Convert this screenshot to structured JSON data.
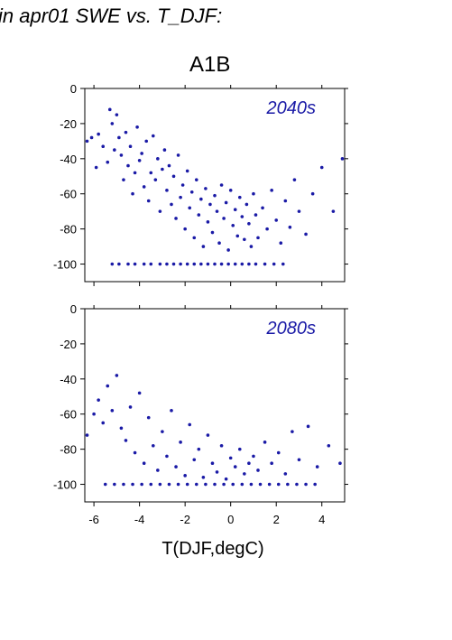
{
  "header": {
    "title": "in apr01 SWE vs. T_DJF:",
    "scenario": "A1B"
  },
  "colors": {
    "points": "#1a1aa6",
    "label": "#1a1aa6"
  },
  "chart_data": [
    {
      "type": "scatter",
      "panel_label": "2040s",
      "xlabel": "T(DJF,degC)",
      "ylabel": "",
      "xlim": [
        -6.4,
        5.0
      ],
      "ylim": [
        -110,
        0
      ],
      "yticks": [
        0,
        -20,
        -40,
        -60,
        -80,
        -100
      ],
      "xticks": [
        -6,
        -4,
        -2,
        0,
        2,
        4
      ],
      "grid": false,
      "x": [
        -6.3,
        -6.1,
        -5.9,
        -5.8,
        -5.6,
        -5.4,
        -5.3,
        -5.2,
        -5.1,
        -5.0,
        -4.9,
        -4.8,
        -4.7,
        -4.6,
        -4.5,
        -4.4,
        -4.3,
        -4.2,
        -4.1,
        -4.0,
        -3.9,
        -3.8,
        -3.7,
        -3.6,
        -3.5,
        -3.4,
        -3.3,
        -3.2,
        -3.1,
        -3.0,
        -2.9,
        -2.8,
        -2.7,
        -2.6,
        -2.5,
        -2.4,
        -2.3,
        -2.2,
        -2.1,
        -2.0,
        -1.9,
        -1.8,
        -1.7,
        -1.6,
        -1.5,
        -1.4,
        -1.3,
        -1.2,
        -1.1,
        -1.0,
        -0.9,
        -0.8,
        -0.7,
        -0.6,
        -0.5,
        -0.4,
        -0.3,
        -0.2,
        -0.1,
        0.0,
        0.1,
        0.2,
        0.3,
        0.4,
        0.5,
        0.6,
        0.7,
        0.8,
        0.9,
        1.0,
        1.1,
        1.2,
        1.4,
        1.6,
        1.8,
        2.0,
        2.2,
        2.4,
        2.6,
        2.8,
        3.0,
        3.3,
        3.6,
        4.0,
        4.5,
        4.9,
        -5.2,
        -4.9,
        -4.5,
        -4.2,
        -3.8,
        -3.5,
        -3.1,
        -2.8,
        -2.5,
        -2.2,
        -1.9,
        -1.6,
        -1.3,
        -1.0,
        -0.7,
        -0.4,
        -0.1,
        0.2,
        0.5,
        0.8,
        1.1,
        1.5,
        1.9,
        2.3
      ],
      "y": [
        -30,
        -28,
        -45,
        -26,
        -33,
        -42,
        -12,
        -20,
        -35,
        -15,
        -28,
        -38,
        -52,
        -25,
        -44,
        -33,
        -60,
        -48,
        -22,
        -41,
        -37,
        -56,
        -30,
        -64,
        -48,
        -27,
        -52,
        -40,
        -70,
        -46,
        -35,
        -58,
        -44,
        -66,
        -50,
        -74,
        -38,
        -62,
        -55,
        -80,
        -47,
        -68,
        -59,
        -85,
        -52,
        -72,
        -63,
        -90,
        -57,
        -76,
        -66,
        -82,
        -61,
        -70,
        -88,
        -55,
        -74,
        -65,
        -92,
        -58,
        -78,
        -69,
        -84,
        -62,
        -73,
        -86,
        -66,
        -77,
        -90,
        -60,
        -72,
        -85,
        -68,
        -80,
        -58,
        -75,
        -88,
        -64,
        -79,
        -52,
        -70,
        -83,
        -60,
        -45,
        -70,
        -40,
        -100,
        -100,
        -100,
        -100,
        -100,
        -100,
        -100,
        -100,
        -100,
        -100,
        -100,
        -100,
        -100,
        -100,
        -100,
        -100,
        -100,
        -100,
        -100,
        -100,
        -100,
        -100,
        -100,
        -100
      ]
    },
    {
      "type": "scatter",
      "panel_label": "2080s",
      "xlabel": "T(DJF,degC)",
      "ylabel": "",
      "xlim": [
        -6.4,
        5.0
      ],
      "ylim": [
        -110,
        0
      ],
      "yticks": [
        0,
        -20,
        -40,
        -60,
        -80,
        -100
      ],
      "xticks": [
        -6,
        -4,
        -2,
        0,
        2,
        4
      ],
      "grid": false,
      "x": [
        -6.3,
        -6.0,
        -5.8,
        -5.6,
        -5.4,
        -5.2,
        -5.0,
        -4.8,
        -4.6,
        -4.4,
        -4.2,
        -4.0,
        -3.8,
        -3.6,
        -3.4,
        -3.2,
        -3.0,
        -2.8,
        -2.6,
        -2.4,
        -2.2,
        -2.0,
        -1.8,
        -1.6,
        -1.4,
        -1.2,
        -1.0,
        -0.8,
        -0.6,
        -0.4,
        -0.2,
        0.0,
        0.2,
        0.4,
        0.6,
        0.8,
        1.0,
        1.2,
        1.5,
        1.8,
        2.1,
        2.4,
        2.7,
        3.0,
        3.4,
        3.8,
        4.3,
        4.8,
        -5.5,
        -5.1,
        -4.7,
        -4.3,
        -3.9,
        -3.5,
        -3.1,
        -2.7,
        -2.3,
        -1.9,
        -1.5,
        -1.1,
        -0.7,
        -0.3,
        0.1,
        0.5,
        0.9,
        1.3,
        1.7,
        2.1,
        2.5,
        2.9,
        3.3,
        3.7
      ],
      "y": [
        -72,
        -60,
        -52,
        -65,
        -44,
        -58,
        -38,
        -68,
        -75,
        -56,
        -82,
        -48,
        -88,
        -62,
        -78,
        -92,
        -70,
        -84,
        -58,
        -90,
        -76,
        -95,
        -66,
        -86,
        -80,
        -96,
        -72,
        -88,
        -93,
        -78,
        -97,
        -85,
        -90,
        -80,
        -94,
        -88,
        -84,
        -92,
        -76,
        -88,
        -82,
        -94,
        -70,
        -86,
        -67,
        -90,
        -78,
        -88,
        -100,
        -100,
        -100,
        -100,
        -100,
        -100,
        -100,
        -100,
        -100,
        -100,
        -100,
        -100,
        -100,
        -100,
        -100,
        -100,
        -100,
        -100,
        -100,
        -100,
        -100,
        -100,
        -100,
        -100
      ]
    }
  ]
}
